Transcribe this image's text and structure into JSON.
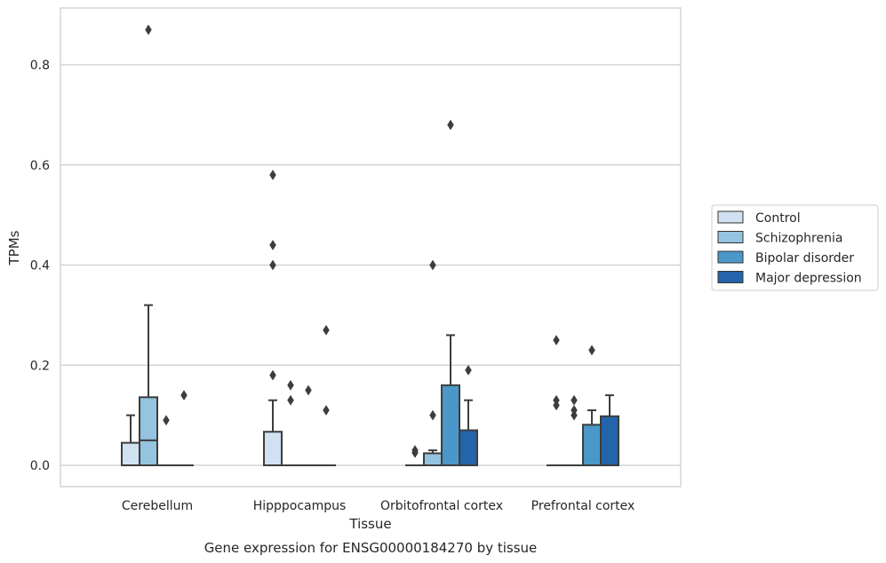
{
  "chart_data": {
    "type": "box",
    "caption": "Gene expression for ENSG00000184270 by tissue",
    "xlabel": "Tissue",
    "ylabel": "TPMs",
    "ylim": [
      -0.043,
      0.915
    ],
    "yticks": [
      0.0,
      0.2,
      0.4,
      0.6,
      0.8
    ],
    "ytick_labels": [
      "0.0",
      "0.2",
      "0.4",
      "0.6",
      "0.8"
    ],
    "grid": "horizontal",
    "legend_position": "right",
    "categories": [
      "Cerebellum",
      "Hipppocampus",
      "Orbitofrontal cortex",
      "Prefrontal cortex"
    ],
    "series": [
      {
        "name": "Control",
        "color": "#d0e1f2",
        "boxes": [
          {
            "q1": 0.0,
            "median": 0.0,
            "q3": 0.045,
            "whisker_low": 0.0,
            "whisker_high": 0.1,
            "outliers": []
          },
          {
            "q1": 0.0,
            "median": 0.0,
            "q3": 0.067,
            "whisker_low": 0.0,
            "whisker_high": 0.13,
            "outliers": [
              0.18,
              0.4,
              0.44,
              0.58
            ]
          },
          {
            "q1": 0.0,
            "median": 0.0,
            "q3": 0.0,
            "whisker_low": 0.0,
            "whisker_high": 0.0,
            "outliers": [
              0.03,
              0.025
            ]
          },
          {
            "q1": 0.0,
            "median": 0.0,
            "q3": 0.0,
            "whisker_low": 0.0,
            "whisker_high": 0.0,
            "outliers": [
              0.12,
              0.13,
              0.25
            ]
          }
        ]
      },
      {
        "name": "Schizophrenia",
        "color": "#94c4df",
        "boxes": [
          {
            "q1": 0.0,
            "median": 0.05,
            "q3": 0.136,
            "whisker_low": 0.0,
            "whisker_high": 0.32,
            "outliers": [
              0.87
            ]
          },
          {
            "q1": 0.0,
            "median": 0.0,
            "q3": 0.0,
            "whisker_low": 0.0,
            "whisker_high": 0.0,
            "outliers": [
              0.13,
              0.16
            ]
          },
          {
            "q1": 0.0,
            "median": 0.0,
            "q3": 0.024,
            "whisker_low": 0.0,
            "whisker_high": 0.03,
            "outliers": [
              0.1,
              0.4
            ]
          },
          {
            "q1": 0.0,
            "median": 0.0,
            "q3": 0.0,
            "whisker_low": 0.0,
            "whisker_high": 0.0,
            "outliers": [
              0.1,
              0.11,
              0.13
            ]
          }
        ]
      },
      {
        "name": "Bipolar disorder",
        "color": "#4a98c9",
        "boxes": [
          {
            "q1": 0.0,
            "median": 0.0,
            "q3": 0.0,
            "whisker_low": 0.0,
            "whisker_high": 0.0,
            "outliers": [
              0.09
            ]
          },
          {
            "q1": 0.0,
            "median": 0.0,
            "q3": 0.0,
            "whisker_low": 0.0,
            "whisker_high": 0.0,
            "outliers": [
              0.15
            ]
          },
          {
            "q1": 0.0,
            "median": 0.0,
            "q3": 0.16,
            "whisker_low": 0.0,
            "whisker_high": 0.26,
            "outliers": [
              0.68
            ]
          },
          {
            "q1": 0.0,
            "median": 0.0,
            "q3": 0.081,
            "whisker_low": 0.0,
            "whisker_high": 0.11,
            "outliers": [
              0.23
            ]
          }
        ]
      },
      {
        "name": "Major depression",
        "color": "#2464ab",
        "boxes": [
          {
            "q1": 0.0,
            "median": 0.0,
            "q3": 0.0,
            "whisker_low": 0.0,
            "whisker_high": 0.0,
            "outliers": [
              0.14
            ]
          },
          {
            "q1": 0.0,
            "median": 0.0,
            "q3": 0.0,
            "whisker_low": 0.0,
            "whisker_high": 0.0,
            "outliers": [
              0.11,
              0.27
            ]
          },
          {
            "q1": 0.0,
            "median": 0.0,
            "q3": 0.07,
            "whisker_low": 0.0,
            "whisker_high": 0.13,
            "outliers": [
              0.19
            ]
          },
          {
            "q1": 0.0,
            "median": 0.0,
            "q3": 0.098,
            "whisker_low": 0.0,
            "whisker_high": 0.14,
            "outliers": []
          }
        ]
      }
    ]
  }
}
